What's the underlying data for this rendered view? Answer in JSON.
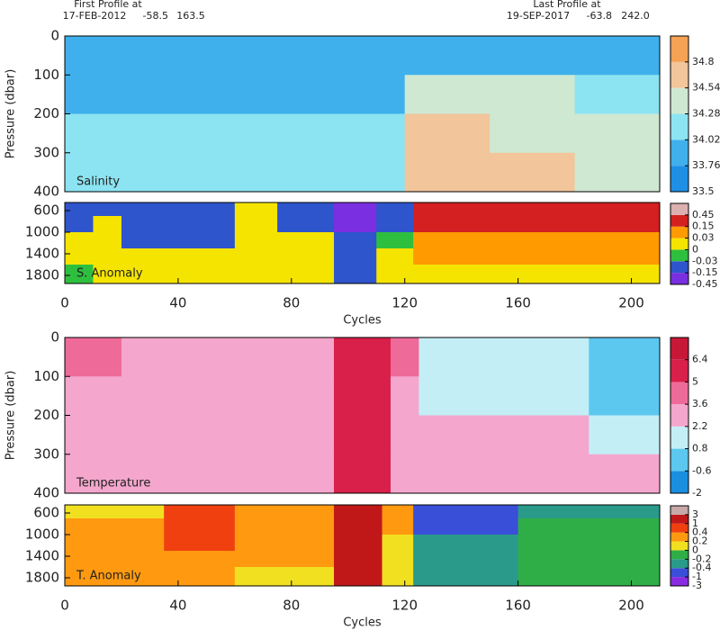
{
  "header": {
    "first_label": "First Profile at",
    "first_date": "17-FEB-2012",
    "first_lat": "-58.5",
    "first_lon": "163.5",
    "last_label": "Last Profile at",
    "last_date": "19-SEP-2017",
    "last_lat": "-63.8",
    "last_lon": "242.0"
  },
  "chart_data": [
    {
      "type": "heatmap",
      "label": "Salinity",
      "ylabel": "Pressure (dbar)",
      "xlim": [
        0,
        210
      ],
      "ylim": [
        0,
        400
      ],
      "yticks": [
        0,
        100,
        200,
        300,
        400
      ],
      "x_edges": [
        0,
        20,
        40,
        60,
        80,
        100,
        120,
        150,
        180,
        210
      ],
      "y_edges": [
        0,
        100,
        200,
        300,
        400
      ],
      "z": [
        [
          33.9,
          33.9,
          33.9,
          33.9,
          33.9,
          33.9,
          33.9,
          33.9,
          33.9
        ],
        [
          34.0,
          34.0,
          34.0,
          34.0,
          34.0,
          34.0,
          34.3,
          34.3,
          34.2
        ],
        [
          34.1,
          34.1,
          34.1,
          34.1,
          34.1,
          34.1,
          34.6,
          34.5,
          34.4
        ],
        [
          34.2,
          34.2,
          34.2,
          34.2,
          34.2,
          34.1,
          34.6,
          34.6,
          34.5
        ]
      ],
      "colorbar": {
        "levels": [
          33.5,
          33.76,
          34.02,
          34.28,
          34.54,
          34.8
        ],
        "colors": [
          "#1f8fe6",
          "#3fb0ec",
          "#8ce4f2",
          "#cfe8d2",
          "#f2c59a",
          "#f5a255"
        ]
      }
    },
    {
      "type": "heatmap",
      "label": "S. Anomaly",
      "xlabel": "Cycles",
      "xlim": [
        0,
        210
      ],
      "ylim": [
        450,
        1950
      ],
      "yticks": [
        600,
        1000,
        1400,
        1800
      ],
      "xticks": [
        0,
        40,
        80,
        120,
        160,
        200
      ],
      "x_edges": [
        0,
        10,
        20,
        35,
        60,
        75,
        95,
        110,
        123,
        165,
        210
      ],
      "y_edges": [
        450,
        700,
        1000,
        1300,
        1600,
        1950
      ],
      "z": [
        [
          -0.1,
          -0.1,
          -0.1,
          -0.1,
          0.0,
          -0.1,
          -0.3,
          -0.1,
          0.2,
          0.2
        ],
        [
          -0.1,
          0.0,
          -0.1,
          -0.1,
          0.01,
          -0.05,
          -0.2,
          -0.05,
          0.2,
          0.2
        ],
        [
          0.0,
          0.01,
          -0.05,
          -0.1,
          0.01,
          0.0,
          -0.1,
          -0.02,
          0.1,
          0.1
        ],
        [
          0.01,
          0.01,
          0.0,
          0.01,
          0.01,
          0.01,
          -0.05,
          0.0,
          0.04,
          0.04
        ],
        [
          -0.02,
          0.01,
          0.01,
          0.01,
          0.01,
          0.01,
          -0.05,
          0.01,
          0.0,
          0.0
        ]
      ],
      "colorbar": {
        "levels": [
          -0.45,
          -0.15,
          -0.03,
          0,
          0.03,
          0.15,
          0.45
        ],
        "colors": [
          "#7a2fe0",
          "#2f55cc",
          "#2fbf3f",
          "#f5e400",
          "#ff9a00",
          "#d42020",
          "#dcb0b0"
        ]
      }
    },
    {
      "type": "heatmap",
      "label": "Temperature",
      "ylabel": "Pressure (dbar)",
      "xlim": [
        0,
        210
      ],
      "ylim": [
        0,
        400
      ],
      "yticks": [
        0,
        100,
        200,
        300,
        400
      ],
      "x_edges": [
        0,
        20,
        40,
        60,
        80,
        95,
        115,
        125,
        160,
        185,
        210
      ],
      "y_edges": [
        0,
        100,
        200,
        300,
        400
      ],
      "z": [
        [
          4,
          3,
          3,
          3,
          3.5,
          5.5,
          4,
          1.5,
          1.5,
          0.5
        ],
        [
          3,
          3,
          3,
          3,
          3,
          5.5,
          3,
          1.5,
          1.5,
          0.5
        ],
        [
          2.6,
          2.6,
          2.6,
          2.6,
          2.6,
          5.5,
          2.6,
          2.2,
          2.3,
          2.0
        ],
        [
          2.4,
          2.4,
          2.4,
          2.4,
          2.4,
          5.5,
          2.4,
          2.4,
          2.4,
          2.3
        ]
      ],
      "colorbar": {
        "levels": [
          -2,
          -0.6,
          0.8,
          2.2,
          3.6,
          5,
          6.4
        ],
        "colors": [
          "#1a8fe0",
          "#5cc8f0",
          "#c4eef6",
          "#f4a6cc",
          "#ee6a98",
          "#d8204a",
          "#c81838"
        ]
      }
    },
    {
      "type": "heatmap",
      "label": "T. Anomaly",
      "xlabel": "Cycles",
      "xlim": [
        0,
        210
      ],
      "ylim": [
        450,
        1950
      ],
      "yticks": [
        600,
        1000,
        1400,
        1800
      ],
      "xticks": [
        0,
        40,
        80,
        120,
        160,
        200
      ],
      "x_edges": [
        0,
        35,
        60,
        80,
        95,
        112,
        123,
        160,
        210
      ],
      "y_edges": [
        450,
        700,
        1000,
        1300,
        1600,
        1950
      ],
      "z": [
        [
          0.1,
          0.5,
          0.3,
          0.3,
          1.5,
          0.3,
          -0.5,
          -0.3
        ],
        [
          0.3,
          0.5,
          0.3,
          0.2,
          1.5,
          0.3,
          -0.5,
          -0.1
        ],
        [
          0.3,
          0.5,
          0.3,
          0.2,
          1.5,
          0.1,
          -0.3,
          -0.1
        ],
        [
          0.3,
          0.3,
          0.2,
          0.2,
          1.5,
          0.1,
          -0.3,
          -0.1
        ],
        [
          0.2,
          0.2,
          0.1,
          0.1,
          1.5,
          0.05,
          -0.3,
          -0.1
        ]
      ],
      "colorbar": {
        "levels": [
          -3,
          -1,
          -0.4,
          -0.2,
          0,
          0.2,
          0.4,
          1,
          3
        ],
        "colors": [
          "#8a2be2",
          "#3a4fd8",
          "#2a9a8a",
          "#2fae48",
          "#f0e020",
          "#ff9a10",
          "#f04010",
          "#c01818",
          "#c8a8a8"
        ]
      }
    }
  ]
}
